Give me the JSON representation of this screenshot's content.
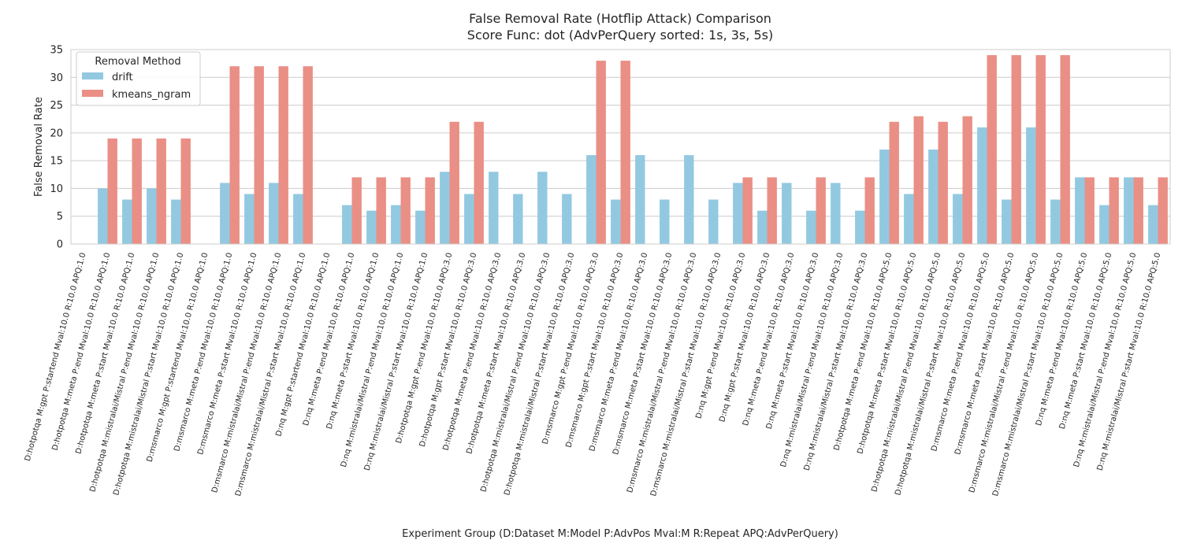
{
  "chart_data": {
    "type": "bar",
    "title": "False Removal Rate (Hotflip Attack) Comparison",
    "subtitle": "Score Func: dot (AdvPerQuery sorted: 1s, 3s, 5s)",
    "xlabel": "Experiment Group (D:Dataset M:Model P:AdvPos Mval:M R:Repeat APQ:AdvPerQuery)",
    "ylabel": "False Removal Rate",
    "ylim": [
      0,
      35
    ],
    "yticks": [
      0,
      5,
      10,
      15,
      20,
      25,
      30,
      35
    ],
    "grid": "horizontal",
    "legend": {
      "title": "Removal Method",
      "placement": "top-left"
    },
    "categories": [
      "D:hotpotqa M:gpt P:startend Mval:10.0 R:10.0 APQ:1.0",
      "D:hotpotqa M:meta P:end Mval:10.0 R:10.0 APQ:1.0",
      "D:hotpotqa M:meta P:start Mval:10.0 R:10.0 APQ:1.0",
      "D:hotpotqa M:mistralai/Mistral P:end Mval:10.0 R:10.0 APQ:1.0",
      "D:hotpotqa M:mistralai/Mistral P:start Mval:10.0 R:10.0 APQ:1.0",
      "D:msmarco M:gpt P:startend Mval:10.0 R:10.0 APQ:1.0",
      "D:msmarco M:meta P:end Mval:10.0 R:10.0 APQ:1.0",
      "D:msmarco M:meta P:start Mval:10.0 R:10.0 APQ:1.0",
      "D:msmarco M:mistralai/Mistral P:end Mval:10.0 R:10.0 APQ:1.0",
      "D:msmarco M:mistralai/Mistral P:start Mval:10.0 R:10.0 APQ:1.0",
      "D:nq M:gpt P:startend Mval:10.0 R:10.0 APQ:1.0",
      "D:nq M:meta P:end Mval:10.0 R:10.0 APQ:1.0",
      "D:nq M:meta P:start Mval:10.0 R:10.0 APQ:1.0",
      "D:nq M:mistralai/Mistral P:end Mval:10.0 R:10.0 APQ:1.0",
      "D:nq M:mistralai/Mistral P:start Mval:10.0 R:10.0 APQ:1.0",
      "D:hotpotqa M:gpt P:end Mval:10.0 R:10.0 APQ:3.0",
      "D:hotpotqa M:gpt P:start Mval:10.0 R:10.0 APQ:3.0",
      "D:hotpotqa M:meta P:end Mval:10.0 R:10.0 APQ:3.0",
      "D:hotpotqa M:meta P:start Mval:10.0 R:10.0 APQ:3.0",
      "D:hotpotqa M:mistralai/Mistral P:end Mval:10.0 R:10.0 APQ:3.0",
      "D:hotpotqa M:mistralai/Mistral P:start Mval:10.0 R:10.0 APQ:3.0",
      "D:msmarco M:gpt P:end Mval:10.0 R:10.0 APQ:3.0",
      "D:msmarco M:gpt P:start Mval:10.0 R:10.0 APQ:3.0",
      "D:msmarco M:meta P:end Mval:10.0 R:10.0 APQ:3.0",
      "D:msmarco M:meta P:start Mval:10.0 R:10.0 APQ:3.0",
      "D:msmarco M:mistralai/Mistral P:end Mval:10.0 R:10.0 APQ:3.0",
      "D:msmarco M:mistralai/Mistral P:start Mval:10.0 R:10.0 APQ:3.0",
      "D:nq M:gpt P:end Mval:10.0 R:10.0 APQ:3.0",
      "D:nq M:gpt P:start Mval:10.0 R:10.0 APQ:3.0",
      "D:nq M:meta P:end Mval:10.0 R:10.0 APQ:3.0",
      "D:nq M:meta P:start Mval:10.0 R:10.0 APQ:3.0",
      "D:nq M:mistralai/Mistral P:end Mval:10.0 R:10.0 APQ:3.0",
      "D:nq M:mistralai/Mistral P:start Mval:10.0 R:10.0 APQ:3.0",
      "D:hotpotqa M:meta P:end Mval:10.0 R:10.0 APQ:5.0",
      "D:hotpotqa M:meta P:start Mval:10.0 R:10.0 APQ:5.0",
      "D:hotpotqa M:mistralai/Mistral P:end Mval:10.0 R:10.0 APQ:5.0",
      "D:hotpotqa M:mistralai/Mistral P:start Mval:10.0 R:10.0 APQ:5.0",
      "D:msmarco M:meta P:end Mval:10.0 R:10.0 APQ:5.0",
      "D:msmarco M:meta P:start Mval:10.0 R:10.0 APQ:5.0",
      "D:msmarco M:mistralai/Mistral P:end Mval:10.0 R:10.0 APQ:5.0",
      "D:msmarco M:mistralai/Mistral P:start Mval:10.0 R:10.0 APQ:5.0",
      "D:nq M:meta P:end Mval:10.0 R:10.0 APQ:5.0",
      "D:nq M:meta P:start Mval:10.0 R:10.0 APQ:5.0",
      "D:nq M:mistralai/Mistral P:end Mval:10.0 R:10.0 APQ:5.0",
      "D:nq M:mistralai/Mistral P:start Mval:10.0 R:10.0 APQ:5.0"
    ],
    "series": [
      {
        "name": "drift",
        "color": "#92c9e1",
        "values": [
          0,
          10,
          8,
          10,
          8,
          0,
          11,
          9,
          11,
          9,
          0,
          7,
          6,
          7,
          6,
          13,
          9,
          13,
          9,
          13,
          9,
          16,
          8,
          16,
          8,
          16,
          8,
          11,
          6,
          11,
          6,
          11,
          6,
          17,
          9,
          17,
          9,
          21,
          8,
          21,
          8,
          12,
          7,
          12,
          7
        ]
      },
      {
        "name": "kmeans_ngram",
        "color": "#ea8f85",
        "values": [
          0,
          19,
          19,
          19,
          19,
          0,
          32,
          32,
          32,
          32,
          0,
          12,
          12,
          12,
          12,
          22,
          22,
          0,
          0,
          0,
          0,
          33,
          33,
          0,
          0,
          0,
          0,
          12,
          12,
          0,
          12,
          0,
          12,
          22,
          23,
          22,
          23,
          34,
          34,
          34,
          34,
          12,
          12,
          12,
          12
        ]
      }
    ]
  }
}
